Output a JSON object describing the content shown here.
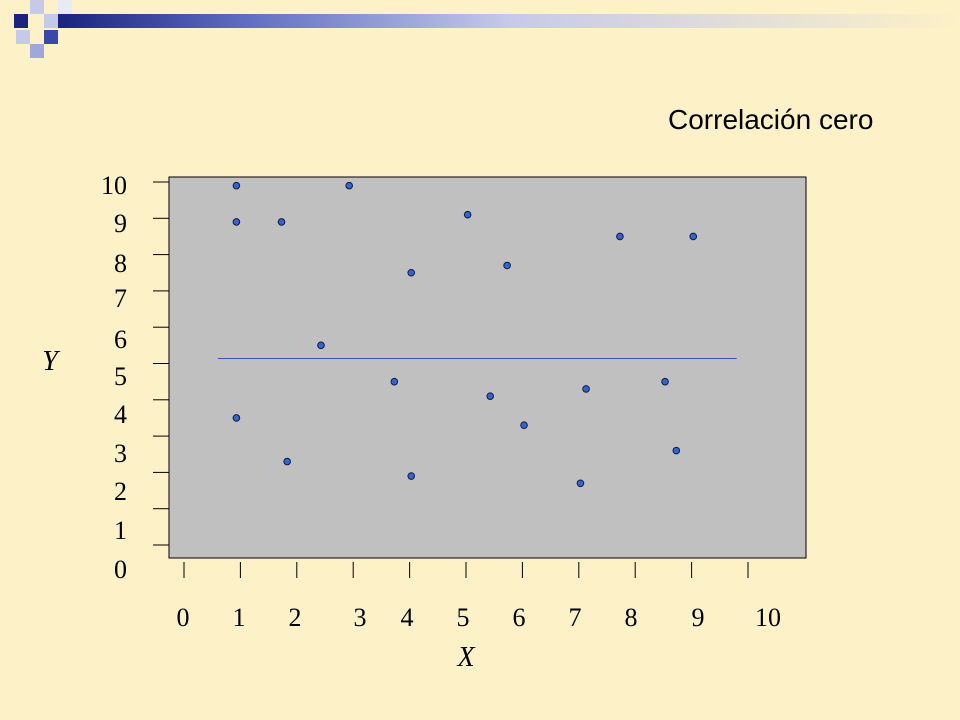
{
  "slide": {
    "title": "Correlación cero",
    "colors": {
      "background": "#FDF1C8",
      "plot_area": "#C0C0C0",
      "point": "#3366CC",
      "deco_navy": "#1A237E",
      "deco_blue": "#9FA8DA"
    }
  },
  "chart_data": {
    "type": "scatter",
    "title": "Correlación cero",
    "xlabel": "X",
    "ylabel": "Y",
    "xlim": [
      0,
      10
    ],
    "ylim": [
      0,
      10
    ],
    "xticks": [
      "0",
      "1",
      "2",
      "3",
      "4",
      "5",
      "6",
      "7",
      "8",
      "9",
      "10"
    ],
    "yticks": [
      "0",
      "1",
      "2",
      "3",
      "4",
      "5",
      "6",
      "7",
      "8",
      "9",
      "10"
    ],
    "grid": false,
    "points": [
      {
        "x": 1.0,
        "y": 9.9
      },
      {
        "x": 3.0,
        "y": 9.9
      },
      {
        "x": 1.0,
        "y": 8.9
      },
      {
        "x": 1.8,
        "y": 8.9
      },
      {
        "x": 5.1,
        "y": 9.1
      },
      {
        "x": 7.8,
        "y": 8.5
      },
      {
        "x": 9.1,
        "y": 8.5
      },
      {
        "x": 5.8,
        "y": 7.7
      },
      {
        "x": 4.1,
        "y": 7.5
      },
      {
        "x": 2.5,
        "y": 5.5
      },
      {
        "x": 3.8,
        "y": 4.5
      },
      {
        "x": 8.6,
        "y": 4.5
      },
      {
        "x": 7.2,
        "y": 4.3
      },
      {
        "x": 5.5,
        "y": 4.1
      },
      {
        "x": 1.0,
        "y": 3.5
      },
      {
        "x": 6.1,
        "y": 3.3
      },
      {
        "x": 8.8,
        "y": 2.6
      },
      {
        "x": 1.9,
        "y": 2.3
      },
      {
        "x": 4.1,
        "y": 1.9
      },
      {
        "x": 7.1,
        "y": 1.7
      }
    ],
    "trend_line": {
      "x_start": 0.6,
      "x_end": 9.8,
      "y": 5.0
    }
  }
}
